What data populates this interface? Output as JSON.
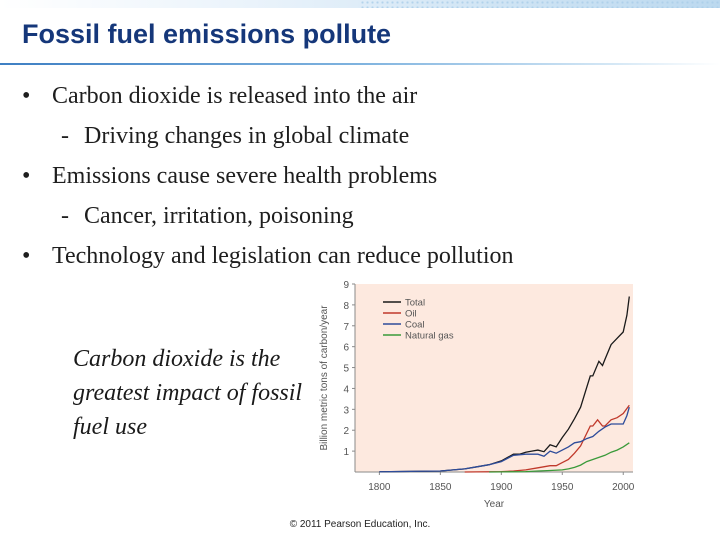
{
  "slide": {
    "title": "Fossil fuel emissions pollute",
    "bullets": [
      {
        "level": 1,
        "marker": "•",
        "text": "Carbon dioxide is released into the air"
      },
      {
        "level": 2,
        "marker": "-",
        "text": "Driving changes in global climate"
      },
      {
        "level": 1,
        "marker": "•",
        "text": "Emissions cause severe health problems"
      },
      {
        "level": 2,
        "marker": "-",
        "text": "Cancer, irritation, poisoning"
      },
      {
        "level": 1,
        "marker": "•",
        "text": "Technology and legislation can reduce pollution"
      }
    ],
    "caption": "Carbon dioxide is the greatest impact of fossil fuel use",
    "copyright": "© 2011 Pearson Education, Inc."
  },
  "chart_data": {
    "type": "line",
    "title": "",
    "xlabel": "Year",
    "ylabel": "Billion metric tons of carbon/year",
    "xlim": [
      1780,
      2008
    ],
    "ylim": [
      0,
      9
    ],
    "x_ticks": [
      1800,
      1850,
      1900,
      1950,
      2000
    ],
    "y_ticks": [
      1,
      2,
      3,
      4,
      5,
      6,
      7,
      8,
      9
    ],
    "grid": false,
    "legend": "top-left",
    "background": "#fde9df",
    "series": [
      {
        "name": "Total",
        "color": "#1a1a1a",
        "x": [
          1800,
          1850,
          1870,
          1880,
          1890,
          1900,
          1910,
          1915,
          1920,
          1925,
          1930,
          1935,
          1940,
          1945,
          1950,
          1955,
          1960,
          1965,
          1970,
          1973,
          1975,
          1980,
          1983,
          1985,
          1990,
          1995,
          2000,
          2003,
          2005
        ],
        "y": [
          0.01,
          0.05,
          0.15,
          0.25,
          0.35,
          0.53,
          0.85,
          0.85,
          0.95,
          1.0,
          1.05,
          0.97,
          1.3,
          1.2,
          1.65,
          2.05,
          2.55,
          3.1,
          4.05,
          4.6,
          4.6,
          5.3,
          5.1,
          5.4,
          6.1,
          6.4,
          6.7,
          7.5,
          8.4
        ]
      },
      {
        "name": "Oil",
        "color": "#c0392b",
        "x": [
          1870,
          1900,
          1910,
          1920,
          1930,
          1940,
          1945,
          1950,
          1955,
          1960,
          1965,
          1970,
          1973,
          1975,
          1979,
          1983,
          1985,
          1990,
          1995,
          2000,
          2005
        ],
        "y": [
          0,
          0.02,
          0.05,
          0.1,
          0.2,
          0.3,
          0.3,
          0.45,
          0.6,
          0.9,
          1.25,
          1.85,
          2.2,
          2.2,
          2.5,
          2.2,
          2.2,
          2.5,
          2.6,
          2.8,
          3.2
        ]
      },
      {
        "name": "Coal",
        "color": "#2e4c9a",
        "x": [
          1800,
          1850,
          1870,
          1880,
          1890,
          1900,
          1910,
          1920,
          1930,
          1935,
          1940,
          1945,
          1950,
          1955,
          1960,
          1965,
          1970,
          1975,
          1980,
          1985,
          1990,
          1995,
          2000,
          2003,
          2005
        ],
        "y": [
          0.01,
          0.05,
          0.15,
          0.25,
          0.35,
          0.5,
          0.8,
          0.85,
          0.85,
          0.75,
          1.0,
          0.9,
          1.05,
          1.2,
          1.4,
          1.45,
          1.6,
          1.7,
          1.95,
          2.15,
          2.3,
          2.3,
          2.3,
          2.7,
          3.1
        ]
      },
      {
        "name": "Natural gas",
        "color": "#3a9a3a",
        "x": [
          1890,
          1900,
          1920,
          1930,
          1940,
          1950,
          1955,
          1960,
          1965,
          1970,
          1975,
          1980,
          1985,
          1990,
          1995,
          2000,
          2005
        ],
        "y": [
          0,
          0.005,
          0.02,
          0.05,
          0.07,
          0.1,
          0.15,
          0.22,
          0.33,
          0.5,
          0.6,
          0.7,
          0.8,
          0.95,
          1.05,
          1.2,
          1.4
        ]
      }
    ]
  }
}
